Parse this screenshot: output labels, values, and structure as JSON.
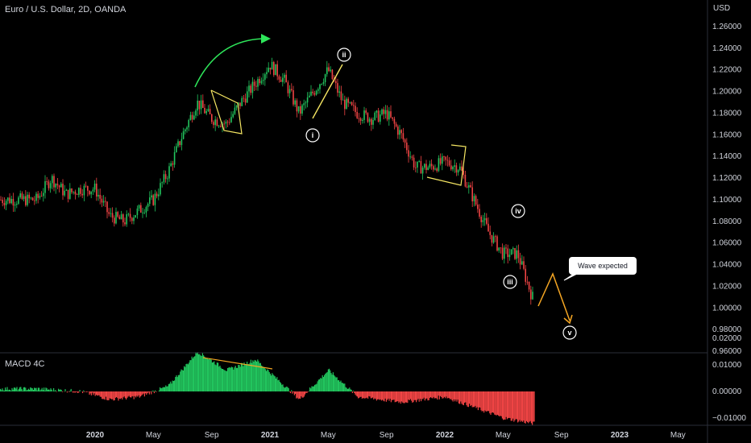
{
  "header": {
    "title": "Euro / U.S. Dollar, 2D, OANDA",
    "currency": "USD",
    "indicator": "MACD 4C"
  },
  "annotations": {
    "callout": "Wave expected",
    "waves": [
      "i",
      "ii",
      "iii",
      "iv",
      "v"
    ]
  },
  "colors": {
    "background": "#000000",
    "up": "#26a69a",
    "candle_up": "#22c55e",
    "candle_down": "#ef4444",
    "yellow": "#f5e663",
    "orange": "#f5a623",
    "arrow_green": "#2ee65a",
    "axis_text": "#d1d4dc"
  },
  "chart_data": [
    {
      "type": "candlestick",
      "title": "Euro / U.S. Dollar, 2D, OANDA",
      "ylabel": "USD",
      "ylim": [
        0.96,
        1.27
      ],
      "y_ticks": [
        "1.26000",
        "1.24000",
        "1.22000",
        "1.20000",
        "1.18000",
        "1.16000",
        "1.14000",
        "1.12000",
        "1.10000",
        "1.08000",
        "1.06000",
        "1.04000",
        "1.02000",
        "1.00000",
        "0.98000",
        "0.96000"
      ],
      "x_ticks": [
        "2020",
        "May",
        "Sep",
        "2021",
        "May",
        "Sep",
        "2022",
        "May",
        "Sep",
        "2023",
        "May"
      ],
      "grid": false,
      "price_path": [
        [
          "2019-09",
          1.1
        ],
        [
          "2019-10",
          1.12
        ],
        [
          "2019-11",
          1.105
        ],
        [
          "2019-12",
          1.11
        ],
        [
          "2020-01",
          1.11
        ],
        [
          "2020-02",
          1.085
        ],
        [
          "2020-03",
          1.08
        ],
        [
          "2020-04",
          1.09
        ],
        [
          "2020-05",
          1.1
        ],
        [
          "2020-06",
          1.125
        ],
        [
          "2020-07",
          1.16
        ],
        [
          "2020-08",
          1.19
        ],
        [
          "2020-09",
          1.175
        ],
        [
          "2020-10",
          1.17
        ],
        [
          "2020-11",
          1.19
        ],
        [
          "2021-01",
          1.225
        ],
        [
          "2021-02",
          1.21
        ],
        [
          "2021-03",
          1.18
        ],
        [
          "2021-04",
          1.2
        ],
        [
          "2021-05",
          1.22
        ],
        [
          "2021-06",
          1.19
        ],
        [
          "2021-07",
          1.18
        ],
        [
          "2021-08",
          1.175
        ],
        [
          "2021-09",
          1.18
        ],
        [
          "2021-10",
          1.16
        ],
        [
          "2021-11",
          1.13
        ],
        [
          "2021-12",
          1.13
        ],
        [
          "2022-01",
          1.135
        ],
        [
          "2022-02",
          1.13
        ],
        [
          "2022-03",
          1.1
        ],
        [
          "2022-04",
          1.07
        ],
        [
          "2022-05",
          1.05
        ],
        [
          "2022-06",
          1.05
        ],
        [
          "2022-07",
          1.01
        ]
      ],
      "wave_labels": [
        {
          "label": "i",
          "date": "2021-03",
          "price": 1.17
        },
        {
          "label": "ii",
          "date": "2021-05",
          "price": 1.235
        },
        {
          "label": "iii",
          "date": "2022-05",
          "price": 1.025
        },
        {
          "label": "iv",
          "date": "2022-06",
          "price": 1.085
        },
        {
          "label": "v",
          "date": "2022-09",
          "price": 0.975
        }
      ],
      "projection": [
        [
          "2022-07",
          1.0
        ],
        [
          "2022-08",
          1.03
        ],
        [
          "2022-09",
          0.98
        ]
      ]
    },
    {
      "type": "bar",
      "title": "MACD 4C",
      "ylim": [
        -0.015,
        0.02
      ],
      "y_ticks": [
        "0.02000",
        "0.01000",
        "0.00000",
        "−0.01000"
      ],
      "histogram_path": [
        [
          "2019-09",
          0.001
        ],
        [
          "2019-12",
          0.0
        ],
        [
          "2020-02",
          -0.003
        ],
        [
          "2020-04",
          -0.002
        ],
        [
          "2020-06",
          0.002
        ],
        [
          "2020-08",
          0.015
        ],
        [
          "2020-10",
          0.008
        ],
        [
          "2020-12",
          0.012
        ],
        [
          "2021-03",
          -0.003
        ],
        [
          "2021-05",
          0.008
        ],
        [
          "2021-07",
          -0.002
        ],
        [
          "2021-10",
          -0.004
        ],
        [
          "2022-01",
          -0.002
        ],
        [
          "2022-03",
          -0.006
        ],
        [
          "2022-05",
          -0.01
        ],
        [
          "2022-07",
          -0.012
        ]
      ]
    }
  ]
}
